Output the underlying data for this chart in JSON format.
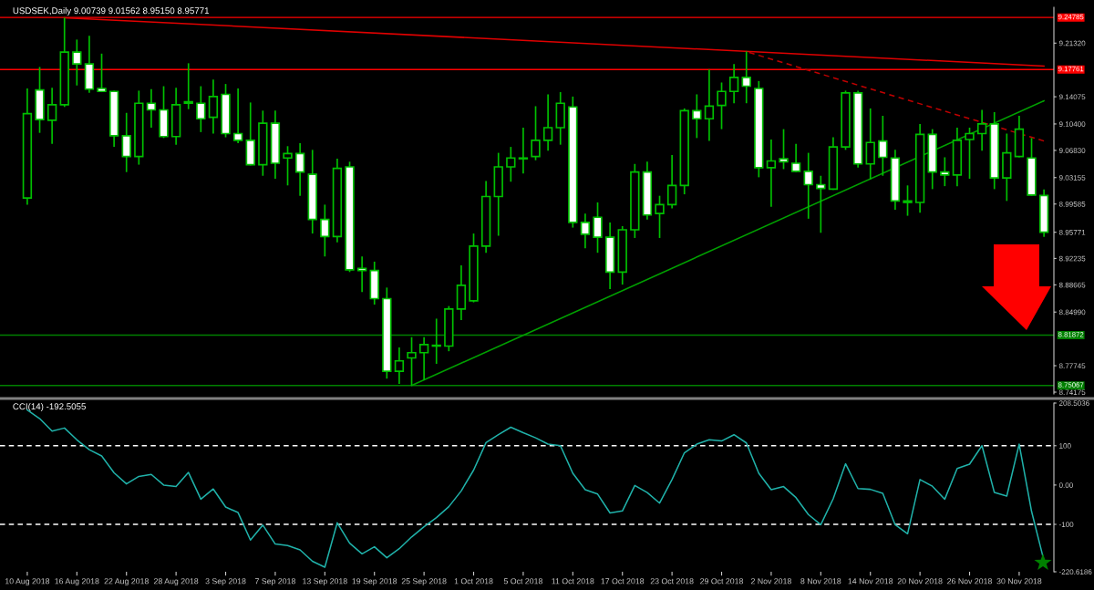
{
  "chart_data": [
    {
      "type": "candlestick",
      "title": "USDSEK,Daily 9.00739 9.01562 8.95150 8.95771",
      "color": "#00c000",
      "categories": [
        null,
        null,
        null,
        null,
        null,
        null,
        null,
        null,
        null,
        null,
        null,
        null,
        null,
        null,
        null,
        null,
        null,
        null,
        null,
        null,
        null,
        null,
        null,
        null,
        null,
        null,
        null,
        null,
        null,
        null,
        null,
        null,
        null,
        null,
        null,
        null,
        null,
        null,
        null,
        null,
        null,
        null,
        null,
        null,
        null,
        null,
        null,
        null,
        null,
        null,
        null,
        null,
        null,
        null,
        null,
        null,
        null,
        null,
        null,
        null,
        null,
        null,
        null,
        null,
        null,
        null,
        null,
        null,
        null,
        null,
        null,
        null,
        null,
        null,
        null,
        null,
        null,
        null,
        null,
        null,
        null,
        null,
        null
      ],
      "ohlc": [
        [
          9.004,
          9.152,
          8.995,
          9.118
        ],
        [
          9.15,
          9.181,
          9.092,
          9.11
        ],
        [
          9.109,
          9.153,
          9.077,
          9.13
        ],
        [
          9.13,
          9.2475,
          9.127,
          9.201
        ],
        [
          9.201,
          9.218,
          9.156,
          9.185
        ],
        [
          9.185,
          9.223,
          9.146,
          9.151
        ],
        [
          9.152,
          9.199,
          9.147,
          9.148
        ],
        [
          9.148,
          9.149,
          9.073,
          9.088
        ],
        [
          9.088,
          9.119,
          9.039,
          9.06
        ],
        [
          9.06,
          9.149,
          9.049,
          9.132
        ],
        [
          9.132,
          9.151,
          9.099,
          9.123
        ],
        [
          9.123,
          9.155,
          9.085,
          9.087
        ],
        [
          9.087,
          9.153,
          9.076,
          9.13
        ],
        [
          9.134,
          9.186,
          9.124,
          9.132
        ],
        [
          9.132,
          9.155,
          9.093,
          9.111
        ],
        [
          9.113,
          9.164,
          9.091,
          9.141
        ],
        [
          9.144,
          9.158,
          9.086,
          9.091
        ],
        [
          9.091,
          9.152,
          9.078,
          9.082
        ],
        [
          9.082,
          9.133,
          9.048,
          9.049
        ],
        [
          9.049,
          9.122,
          9.034,
          9.105
        ],
        [
          9.105,
          9.122,
          9.03,
          9.051
        ],
        [
          9.058,
          9.074,
          9.021,
          9.064
        ],
        [
          9.064,
          9.078,
          9.007,
          9.039
        ],
        [
          9.036,
          9.069,
          8.956,
          8.975
        ],
        [
          8.975,
          8.995,
          8.925,
          8.952
        ],
        [
          8.952,
          9.057,
          8.944,
          9.044
        ],
        [
          9.046,
          9.053,
          8.904,
          8.907
        ],
        [
          8.909,
          8.925,
          8.877,
          8.906
        ],
        [
          8.906,
          8.918,
          8.86,
          8.868
        ],
        [
          8.868,
          8.883,
          8.76,
          8.77
        ],
        [
          8.77,
          8.802,
          8.753,
          8.784
        ],
        [
          8.788,
          8.816,
          8.7507,
          8.795
        ],
        [
          8.795,
          8.816,
          8.758,
          8.806
        ],
        [
          8.804,
          8.841,
          8.78,
          8.805
        ],
        [
          8.804,
          8.858,
          8.797,
          8.854
        ],
        [
          8.854,
          8.913,
          8.839,
          8.886
        ],
        [
          8.865,
          8.956,
          8.863,
          8.939
        ],
        [
          8.939,
          9.027,
          8.93,
          9.006
        ],
        [
          9.006,
          9.065,
          8.953,
          9.046
        ],
        [
          9.046,
          9.073,
          9.026,
          9.058
        ],
        [
          9.057,
          9.099,
          9.037,
          9.058
        ],
        [
          9.06,
          9.128,
          9.055,
          9.082
        ],
        [
          9.082,
          9.144,
          9.068,
          9.099
        ],
        [
          9.099,
          9.147,
          9.076,
          9.132
        ],
        [
          9.127,
          9.141,
          8.964,
          8.971
        ],
        [
          8.971,
          8.983,
          8.936,
          8.955
        ],
        [
          8.978,
          8.998,
          8.93,
          8.951
        ],
        [
          8.951,
          8.971,
          8.881,
          8.904
        ],
        [
          8.904,
          8.966,
          8.887,
          8.961
        ],
        [
          8.961,
          9.05,
          8.95,
          9.039
        ],
        [
          9.039,
          9.053,
          8.975,
          8.981
        ],
        [
          8.983,
          9.007,
          8.95,
          8.995
        ],
        [
          8.995,
          9.062,
          8.99,
          9.021
        ],
        [
          9.021,
          9.125,
          9.009,
          9.122
        ],
        [
          9.122,
          9.144,
          9.085,
          9.111
        ],
        [
          9.111,
          9.1775,
          9.081,
          9.128
        ],
        [
          9.129,
          9.16,
          9.097,
          9.148
        ],
        [
          9.148,
          9.185,
          9.132,
          9.167
        ],
        [
          9.167,
          9.202,
          9.132,
          9.155
        ],
        [
          9.152,
          9.162,
          9.032,
          9.045
        ],
        [
          9.045,
          9.083,
          8.992,
          9.054
        ],
        [
          9.057,
          9.097,
          9.043,
          9.053
        ],
        [
          9.051,
          9.077,
          9.039,
          9.04
        ],
        [
          9.04,
          9.065,
          8.976,
          9.022
        ],
        [
          9.022,
          9.034,
          8.957,
          9.017
        ],
        [
          9.016,
          9.086,
          9.015,
          9.073
        ],
        [
          9.073,
          9.149,
          9.069,
          9.146
        ],
        [
          9.146,
          9.149,
          9.045,
          9.05
        ],
        [
          9.05,
          9.125,
          9.029,
          9.079
        ],
        [
          9.081,
          9.115,
          9.034,
          9.059
        ],
        [
          9.058,
          9.069,
          8.988,
          9.0
        ],
        [
          9.0,
          9.021,
          8.98,
          8.998
        ],
        [
          8.998,
          9.104,
          8.984,
          9.09
        ],
        [
          9.09,
          9.097,
          9.016,
          9.039
        ],
        [
          9.039,
          9.059,
          9.02,
          9.035
        ],
        [
          9.035,
          9.099,
          9.02,
          9.082
        ],
        [
          9.083,
          9.099,
          9.03,
          9.091
        ],
        [
          9.091,
          9.123,
          9.068,
          9.104
        ],
        [
          9.104,
          9.12,
          9.016,
          9.031
        ],
        [
          9.031,
          9.091,
          9.0,
          9.065
        ],
        [
          9.06,
          9.115,
          9.059,
          9.097
        ],
        [
          9.058,
          9.085,
          9.007,
          9.008
        ],
        [
          9.00739,
          9.01562,
          8.9515,
          8.95771
        ]
      ],
      "series": [
        {
          "type": "line",
          "color": "#e00000",
          "line_style": "solid",
          "values": [
            null,
            null,
            null,
            9.2475,
            null,
            null,
            null,
            null,
            null,
            null,
            null,
            null,
            null,
            null,
            null,
            null,
            null,
            null,
            null,
            null,
            null,
            null,
            null,
            null,
            null,
            null,
            null,
            null,
            null,
            null,
            null,
            null,
            null,
            null,
            null,
            null,
            null,
            null,
            null,
            null,
            null,
            null,
            null,
            null,
            null,
            null,
            null,
            null,
            null,
            null,
            null,
            null,
            null,
            null,
            null,
            null,
            null,
            null,
            null,
            null,
            null,
            null,
            null,
            null,
            null,
            null,
            null,
            null,
            null,
            null,
            null,
            null,
            null,
            null,
            null,
            null,
            null,
            null,
            null,
            null,
            null,
            null,
            9.1822
          ]
        },
        {
          "type": "line",
          "color": "#c00000",
          "line_style": "dashed",
          "values": [
            null,
            null,
            null,
            null,
            null,
            null,
            null,
            null,
            null,
            null,
            null,
            null,
            null,
            null,
            null,
            null,
            null,
            null,
            null,
            null,
            null,
            null,
            null,
            null,
            null,
            null,
            null,
            null,
            null,
            null,
            null,
            null,
            null,
            null,
            null,
            null,
            null,
            null,
            null,
            null,
            null,
            null,
            null,
            null,
            null,
            null,
            null,
            null,
            null,
            null,
            null,
            null,
            null,
            null,
            null,
            null,
            null,
            null,
            9.2017,
            null,
            null,
            null,
            null,
            null,
            null,
            null,
            null,
            null,
            null,
            null,
            null,
            null,
            null,
            null,
            null,
            null,
            null,
            null,
            null,
            null,
            null,
            null,
            9.081
          ]
        },
        {
          "type": "line",
          "color": "#00a000",
          "line_style": "solid",
          "values": [
            null,
            null,
            null,
            null,
            null,
            null,
            null,
            null,
            null,
            null,
            null,
            null,
            null,
            null,
            null,
            null,
            null,
            null,
            null,
            null,
            null,
            null,
            null,
            null,
            null,
            null,
            null,
            null,
            null,
            null,
            null,
            8.7507,
            null,
            null,
            null,
            null,
            null,
            null,
            null,
            null,
            null,
            null,
            null,
            null,
            null,
            null,
            null,
            null,
            null,
            null,
            null,
            null,
            null,
            null,
            null,
            null,
            null,
            null,
            null,
            null,
            null,
            null,
            null,
            null,
            null,
            null,
            null,
            null,
            null,
            null,
            null,
            null,
            null,
            null,
            null,
            null,
            null,
            null,
            null,
            null,
            null,
            null,
            9.1354
          ]
        }
      ],
      "ylim": [
        8.7393,
        9.2616
      ],
      "yticks": [
        {
          "value": 9.2132,
          "label": "9.21320"
        },
        {
          "value": 9.14075,
          "label": "9.14075"
        },
        {
          "value": 9.104,
          "label": "9.10400"
        },
        {
          "value": 9.0683,
          "label": "9.06830"
        },
        {
          "value": 9.03155,
          "label": "9.03155"
        },
        {
          "value": 8.99585,
          "label": "8.99585"
        },
        {
          "value": 8.95771,
          "label": "8.95771"
        },
        {
          "value": 8.92235,
          "label": "8.92235"
        },
        {
          "value": 8.88665,
          "label": "8.88665"
        },
        {
          "value": 8.8499,
          "label": "8.84990"
        },
        {
          "value": 8.77745,
          "label": "8.77745"
        },
        {
          "value": 8.74175,
          "label": "8.74175"
        }
      ],
      "tick_labels": "y",
      "ref_lines": [
        {
          "axis": "y",
          "value": 9.24785,
          "label": "9.24785",
          "color": "#ff0000"
        },
        {
          "axis": "y",
          "value": 9.17761,
          "label": "9.17761",
          "color": "#ff0000"
        },
        {
          "axis": "y",
          "value": 8.81872,
          "label": "8.81872",
          "color": "#008000"
        },
        {
          "axis": "y",
          "value": 8.75067,
          "label": "8.75067",
          "color": "#008000"
        }
      ],
      "grid": false,
      "legend": false
    },
    {
      "type": "line",
      "title": "CCI(14) -192.5055",
      "categories": [
        "10 Aug 2018",
        null,
        null,
        null,
        "16 Aug 2018",
        null,
        null,
        null,
        "22 Aug 2018",
        null,
        null,
        null,
        "28 Aug 2018",
        null,
        null,
        null,
        "3 Sep 2018",
        null,
        null,
        null,
        "7 Sep 2018",
        null,
        null,
        null,
        "13 Sep 2018",
        null,
        null,
        null,
        "19 Sep 2018",
        null,
        null,
        null,
        "25 Sep 2018",
        null,
        null,
        null,
        "1 Oct 2018",
        null,
        null,
        null,
        "5 Oct 2018",
        null,
        null,
        null,
        "11 Oct 2018",
        null,
        null,
        null,
        "17 Oct 2018",
        null,
        null,
        null,
        "23 Oct 2018",
        null,
        null,
        null,
        "29 Oct 2018",
        null,
        null,
        null,
        "2 Nov 2018",
        null,
        null,
        null,
        "8 Nov 2018",
        null,
        null,
        null,
        "14 Nov 2018",
        null,
        null,
        null,
        "20 Nov 2018",
        null,
        null,
        null,
        "26 Nov 2018",
        null,
        null,
        null,
        "30 Nov 2018",
        null,
        null
      ],
      "series": [
        {
          "color": "#20b2aa",
          "values": [
            191,
            169,
            137,
            145,
            115,
            90,
            74,
            31,
            3,
            22,
            27,
            0,
            -4,
            32,
            -36,
            -10,
            -56,
            -70,
            -140,
            -102,
            -150,
            -154,
            -165,
            -194,
            -209,
            -96,
            -148,
            -175,
            -157,
            -185,
            -162,
            -132,
            -106,
            -83,
            -55,
            -15,
            38,
            108,
            128,
            147,
            133,
            120,
            104,
            100,
            30,
            -12,
            -23,
            -71,
            -66,
            -1,
            -19,
            -46,
            14,
            82,
            104,
            115,
            112,
            128,
            107,
            30,
            -12,
            -4,
            -32,
            -75,
            -101,
            -35,
            54,
            -9,
            -11,
            -21,
            -101,
            -124,
            14,
            -3,
            -36,
            42,
            53,
            100,
            -19,
            -28,
            104,
            -67,
            -192.5055
          ]
        }
      ],
      "ylim": [
        -220.6186,
        208.5036
      ],
      "yticks": [
        {
          "value": 208.5036,
          "label": "208.5036"
        },
        100,
        {
          "value": 0,
          "label": "0.00"
        },
        -100,
        {
          "value": -220.6186,
          "label": "-220.6186"
        }
      ],
      "ref_lines": [
        {
          "axis": "y",
          "value": 100,
          "color": "#ffffff",
          "line_style": "dashed"
        },
        {
          "axis": "y",
          "value": -100,
          "color": "#ffffff",
          "line_style": "dashed"
        }
      ],
      "marker": "none",
      "line_style": "solid",
      "grid": false,
      "legend": false
    }
  ]
}
